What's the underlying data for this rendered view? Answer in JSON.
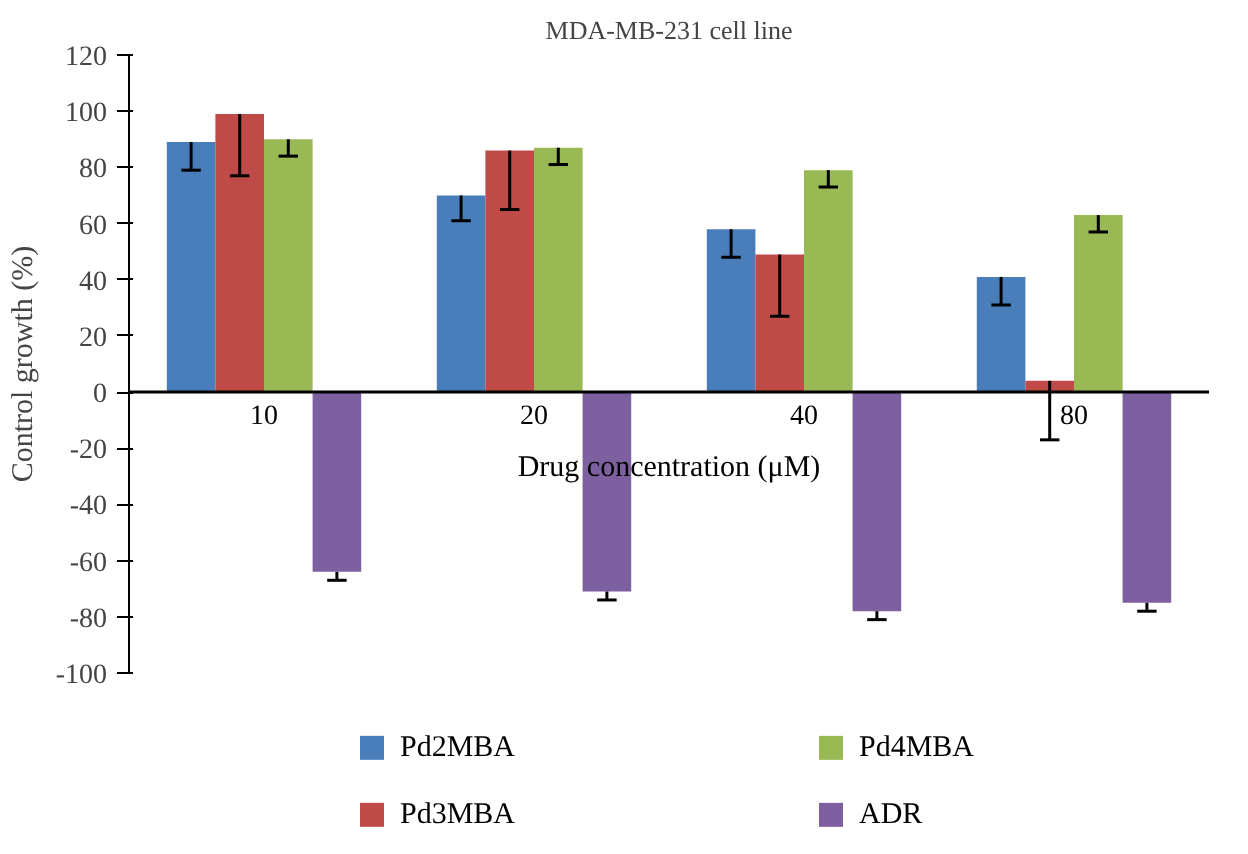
{
  "chart_data": {
    "type": "bar",
    "title": "MDA-MB-231 cell line",
    "xlabel": "Drug concentration (μM)",
    "ylabel": "Control growth (%)",
    "categories": [
      "10",
      "20",
      "40",
      "80"
    ],
    "series": [
      {
        "name": "Pd2MBA",
        "color": "#4a7ebb",
        "values": [
          89,
          70,
          58,
          41
        ],
        "errors": [
          [
            79,
            89
          ],
          [
            61,
            70
          ],
          [
            48,
            58
          ],
          [
            31,
            41
          ]
        ]
      },
      {
        "name": "Pd3MBA",
        "color": "#be4b48",
        "values": [
          99,
          86,
          49,
          4
        ],
        "errors": [
          [
            77,
            99
          ],
          [
            65,
            86
          ],
          [
            27,
            49
          ],
          [
            -17,
            4
          ]
        ]
      },
      {
        "name": "Pd4MBA",
        "color": "#98b954",
        "values": [
          90,
          87,
          79,
          63
        ],
        "errors": [
          [
            84,
            90
          ],
          [
            81,
            87
          ],
          [
            73,
            79
          ],
          [
            57,
            63
          ]
        ]
      },
      {
        "name": "ADR",
        "color": "#7d60a0",
        "values": [
          -64,
          -71,
          -78,
          -75
        ],
        "errors": [
          [
            -67,
            -64
          ],
          [
            -74,
            -71
          ],
          [
            -81,
            -78
          ],
          [
            -78,
            -75
          ]
        ]
      }
    ],
    "ylim": [
      -100,
      120
    ],
    "yticks": [
      -100,
      -80,
      -60,
      -40,
      -20,
      0,
      20,
      40,
      60,
      80,
      100,
      120
    ],
    "grid": false,
    "legend": "bottom"
  }
}
